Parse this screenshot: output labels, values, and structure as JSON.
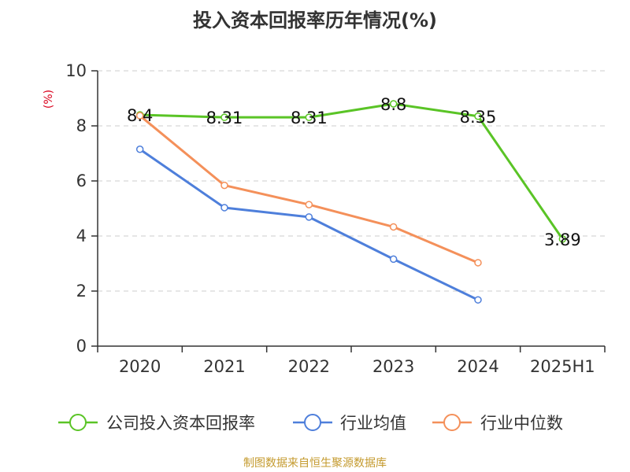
{
  "chart_data": {
    "type": "line",
    "title": "投入资本回报率历年情况(%)",
    "ylabel": "(%)",
    "xlabel": "",
    "categories": [
      "2020",
      "2021",
      "2022",
      "2023",
      "2024",
      "2025H1"
    ],
    "ylim": [
      0,
      10
    ],
    "yticks": [
      0,
      2,
      4,
      6,
      8,
      10
    ],
    "grid": true,
    "legend_position": "bottom",
    "series": [
      {
        "name": "公司投入资本回报率",
        "color": "#5ac426",
        "values": [
          8.4,
          8.31,
          8.31,
          8.8,
          8.35,
          3.89
        ],
        "labels": [
          "8.4",
          "8.31",
          "8.31",
          "8.8",
          "8.35",
          "3.89"
        ]
      },
      {
        "name": "行业均值",
        "color": "#4e7fdb",
        "values": [
          7.15,
          5.03,
          4.69,
          3.16,
          1.68,
          null
        ]
      },
      {
        "name": "行业中位数",
        "color": "#f4905a",
        "values": [
          8.37,
          5.84,
          5.14,
          4.33,
          3.03,
          null
        ]
      }
    ]
  },
  "footer": {
    "source": "制图数据来自恒生聚源数据库"
  }
}
